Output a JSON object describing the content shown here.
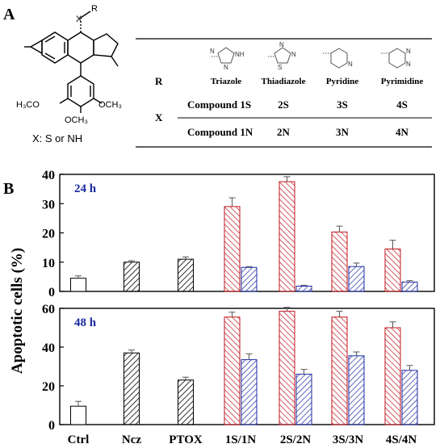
{
  "panel_a": {
    "label": "A",
    "structure": {
      "substituent_x": "X",
      "substituent_r": "R",
      "methoxy_left": "H₃CO",
      "methoxy_right": "OCH₃",
      "methoxy_bottom": "OCH₃",
      "caption": "X: S or NH"
    },
    "table": {
      "row_r": "R",
      "row_x": "X",
      "headers": [
        "Triazole",
        "Thiadiazole",
        "Pyridine",
        "Pyrimidine"
      ],
      "ring_atoms": {
        "triazole": [
          "N",
          "NH",
          "N"
        ],
        "thiadiazole": [
          "S",
          "N",
          "N"
        ],
        "pyridine": [
          "N"
        ],
        "pyrimidine": [
          "N",
          "N"
        ]
      },
      "rows": [
        {
          "label": "Compound 1S",
          "values": [
            "2S",
            "3S",
            "4S"
          ]
        },
        {
          "label": "Compound 1N",
          "values": [
            "2N",
            "3N",
            "4N"
          ]
        }
      ]
    }
  },
  "panel_b": {
    "label": "B"
  },
  "chart_data": [
    {
      "type": "bar",
      "annotation": "24 h",
      "ylabel": "Apoptotic cells (%)",
      "ylim": [
        0,
        40
      ],
      "yticks": [
        0,
        10,
        20,
        30,
        40
      ],
      "categories": [
        "Ctrl",
        "Ncz",
        "PTOX",
        "1S/1N",
        "2S/2N",
        "3S/3N",
        "4S/4N"
      ],
      "series": [
        {
          "values": [
            4.5,
            10,
            11,
            null,
            null,
            null,
            null
          ],
          "errors": [
            0.8,
            0.5,
            0.8,
            null,
            null,
            null,
            null
          ]
        },
        {
          "values": [
            null,
            null,
            null,
            29,
            37.5,
            20.3,
            14.5
          ],
          "errors": [
            null,
            null,
            null,
            3,
            1.7,
            2,
            3
          ]
        },
        {
          "values": [
            null,
            null,
            null,
            8.2,
            1.8,
            8.5,
            3.2
          ],
          "errors": [
            null,
            null,
            null,
            0.3,
            0.3,
            1.2,
            0.5
          ]
        }
      ],
      "colors": {
        "control": "#000000",
        "reference": "#000000",
        "compound_s": "#c0151b",
        "compound_n": "#1a2aa0"
      }
    },
    {
      "type": "bar",
      "annotation": "48 h",
      "ylabel": "Apoptotic cells (%)",
      "ylim": [
        0,
        60
      ],
      "yticks": [
        0,
        20,
        40,
        60
      ],
      "categories": [
        "Ctrl",
        "Ncz",
        "PTOX",
        "1S/1N",
        "2S/2N",
        "3S/3N",
        "4S/4N"
      ],
      "series": [
        {
          "values": [
            9.5,
            37,
            23,
            null,
            null,
            null,
            null
          ],
          "errors": [
            2.5,
            1.5,
            1.5,
            null,
            null,
            null,
            null
          ]
        },
        {
          "values": [
            null,
            null,
            null,
            55.5,
            58.5,
            55.5,
            50
          ],
          "errors": [
            null,
            null,
            null,
            2.5,
            2,
            3,
            3
          ]
        },
        {
          "values": [
            null,
            null,
            null,
            33.5,
            26,
            35.5,
            28
          ],
          "errors": [
            null,
            null,
            null,
            3,
            2.5,
            2,
            2.5
          ]
        }
      ],
      "colors": {
        "control": "#000000",
        "reference": "#000000",
        "compound_s": "#c0151b",
        "compound_n": "#1a2aa0"
      }
    }
  ]
}
